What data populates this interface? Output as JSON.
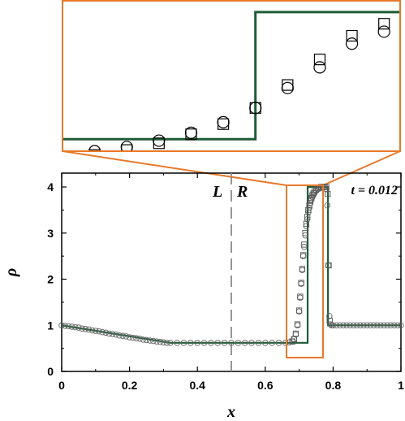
{
  "chart_data": [
    {
      "type": "line",
      "xlabel": "x",
      "ylabel": "ρ",
      "xlim": [
        0,
        1
      ],
      "ylim": [
        0,
        4.3
      ],
      "xticks": [
        "0",
        "0.2",
        "0.4",
        "0.6",
        "0.8",
        "1"
      ],
      "yticks": [
        "0",
        "1",
        "2",
        "3",
        "4"
      ],
      "time_annotation": "t = 0.012",
      "interface_labels": {
        "left": "L",
        "right": "R",
        "x": 0.5
      },
      "exact_solution": {
        "color": "#1e5c36",
        "x": [
          0,
          0.32,
          0.69,
          0.69,
          0.725,
          0.725,
          0.785,
          0.785,
          1
        ],
        "y": [
          1,
          0.62,
          0.62,
          0.62,
          0.62,
          4.0,
          4.0,
          1.0,
          1.0
        ]
      },
      "series": [
        {
          "marker": "circle",
          "x": [
            0,
            0.01,
            0.02,
            0.03,
            0.04,
            0.05,
            0.06,
            0.07,
            0.08,
            0.09,
            0.1,
            0.11,
            0.12,
            0.13,
            0.14,
            0.15,
            0.16,
            0.17,
            0.18,
            0.19,
            0.2,
            0.21,
            0.22,
            0.23,
            0.24,
            0.25,
            0.26,
            0.27,
            0.28,
            0.29,
            0.3,
            0.31,
            0.32,
            0.34,
            0.36,
            0.38,
            0.4,
            0.42,
            0.44,
            0.46,
            0.48,
            0.5,
            0.52,
            0.54,
            0.56,
            0.58,
            0.6,
            0.62,
            0.64,
            0.66,
            0.67,
            0.68,
            0.685,
            0.69,
            0.695,
            0.7,
            0.703,
            0.706,
            0.709,
            0.712,
            0.715,
            0.718,
            0.721,
            0.724,
            0.727,
            0.73,
            0.733,
            0.736,
            0.739,
            0.742,
            0.745,
            0.75,
            0.755,
            0.76,
            0.765,
            0.77,
            0.775,
            0.78,
            0.783,
            0.786,
            0.789,
            0.792,
            0.795,
            0.8,
            0.81,
            0.82,
            0.83,
            0.84,
            0.85,
            0.86,
            0.87,
            0.88,
            0.89,
            0.9,
            0.91,
            0.92,
            0.93,
            0.94,
            0.95,
            0.96,
            0.97,
            0.98,
            0.99,
            1.0
          ],
          "y": [
            1.0,
            0.99,
            0.98,
            0.97,
            0.96,
            0.95,
            0.93,
            0.92,
            0.91,
            0.89,
            0.88,
            0.87,
            0.85,
            0.84,
            0.82,
            0.81,
            0.8,
            0.78,
            0.77,
            0.76,
            0.74,
            0.73,
            0.72,
            0.71,
            0.69,
            0.68,
            0.67,
            0.66,
            0.65,
            0.64,
            0.63,
            0.62,
            0.62,
            0.62,
            0.62,
            0.62,
            0.62,
            0.62,
            0.62,
            0.62,
            0.62,
            0.62,
            0.62,
            0.62,
            0.62,
            0.62,
            0.62,
            0.62,
            0.62,
            0.62,
            0.63,
            0.65,
            0.7,
            0.8,
            1.0,
            1.3,
            1.6,
            1.9,
            2.2,
            2.5,
            2.7,
            2.95,
            3.15,
            3.3,
            3.45,
            3.55,
            3.65,
            3.72,
            3.78,
            3.83,
            3.87,
            3.92,
            3.95,
            3.97,
            3.99,
            4.0,
            4.0,
            3.95,
            3.6,
            2.3,
            1.2,
            1.02,
            1.0,
            1.0,
            1.0,
            1.0,
            1.0,
            1.0,
            1.0,
            1.0,
            1.0,
            1.0,
            1.0,
            1.0,
            1.0,
            1.0,
            1.0,
            1.0,
            1.0,
            1.0,
            1.0,
            1.0,
            1.0,
            1.0
          ]
        },
        {
          "marker": "square",
          "x": [
            0.68,
            0.685,
            0.69,
            0.695,
            0.7,
            0.703,
            0.706,
            0.709,
            0.712,
            0.715,
            0.718,
            0.721,
            0.724,
            0.727,
            0.73,
            0.733,
            0.736,
            0.739,
            0.742,
            0.745,
            0.75,
            0.755,
            0.76,
            0.765,
            0.77,
            0.775,
            0.78,
            0.784,
            0.787,
            0.79
          ],
          "y": [
            0.65,
            0.7,
            0.82,
            1.02,
            1.32,
            1.62,
            1.92,
            2.22,
            2.52,
            2.75,
            3.0,
            3.2,
            3.35,
            3.5,
            3.6,
            3.7,
            3.76,
            3.82,
            3.86,
            3.9,
            3.94,
            3.97,
            3.99,
            4.0,
            4.0,
            4.0,
            4.0,
            3.85,
            2.3,
            1.1
          ]
        }
      ]
    },
    {
      "type": "line",
      "role": "zoom-inset",
      "xlim": [
        0.665,
        0.77
      ],
      "ylim": [
        0.3,
        4.3
      ],
      "exact_solution": {
        "color": "#1e5c36",
        "x": [
          0.665,
          0.725,
          0.725,
          0.77
        ],
        "y": [
          0.62,
          0.62,
          4.0,
          4.0
        ]
      },
      "series": [
        {
          "marker": "circle",
          "x": [
            0.675,
            0.685,
            0.695,
            0.705,
            0.715,
            0.725,
            0.735,
            0.745,
            0.755,
            0.765
          ],
          "y": [
            0.3,
            0.41,
            0.58,
            0.79,
            1.07,
            1.45,
            1.98,
            2.53,
            3.16,
            3.48
          ]
        },
        {
          "marker": "square",
          "x": [
            0.675,
            0.685,
            0.695,
            0.705,
            0.715,
            0.725,
            0.735,
            0.745,
            0.755,
            0.765
          ],
          "y": [
            0.2,
            0.33,
            0.51,
            0.75,
            1.02,
            1.45,
            2.06,
            2.74,
            3.37,
            3.69
          ]
        }
      ]
    }
  ]
}
